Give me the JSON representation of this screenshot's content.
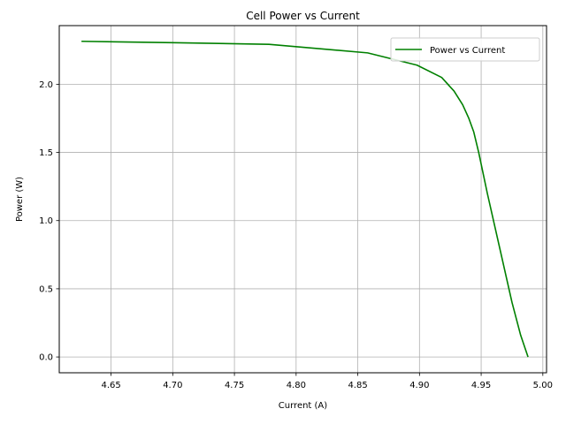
{
  "chart_data": {
    "type": "line",
    "title": "Cell Power vs Current",
    "xlabel": "Current (A)",
    "ylabel": "Power (W)",
    "xlim": [
      4.608,
      5.003
    ],
    "ylim": [
      -0.116,
      2.43
    ],
    "grid": true,
    "legend_position": "top-right",
    "x_ticks": [
      4.65,
      4.7,
      4.75,
      4.8,
      4.85,
      4.9,
      4.95,
      5.0
    ],
    "x_tick_labels": [
      "4.65",
      "4.70",
      "4.75",
      "4.80",
      "4.85",
      "4.90",
      "4.95",
      "5.00"
    ],
    "y_ticks": [
      0.0,
      0.5,
      1.0,
      1.5,
      2.0
    ],
    "y_tick_labels": [
      "0.0",
      "0.5",
      "1.0",
      "1.5",
      "2.0"
    ],
    "series": [
      {
        "name": "Power vs Current",
        "color": "#008000",
        "x": [
          4.626,
          4.7,
          4.778,
          4.858,
          4.898,
          4.918,
          4.928,
          4.935,
          4.94,
          4.944,
          4.948,
          4.955,
          4.965,
          4.975,
          4.982,
          4.988
        ],
        "y": [
          2.315,
          2.305,
          2.293,
          2.23,
          2.14,
          2.05,
          1.95,
          1.85,
          1.75,
          1.65,
          1.5,
          1.2,
          0.8,
          0.4,
          0.16,
          0.0
        ]
      }
    ]
  }
}
